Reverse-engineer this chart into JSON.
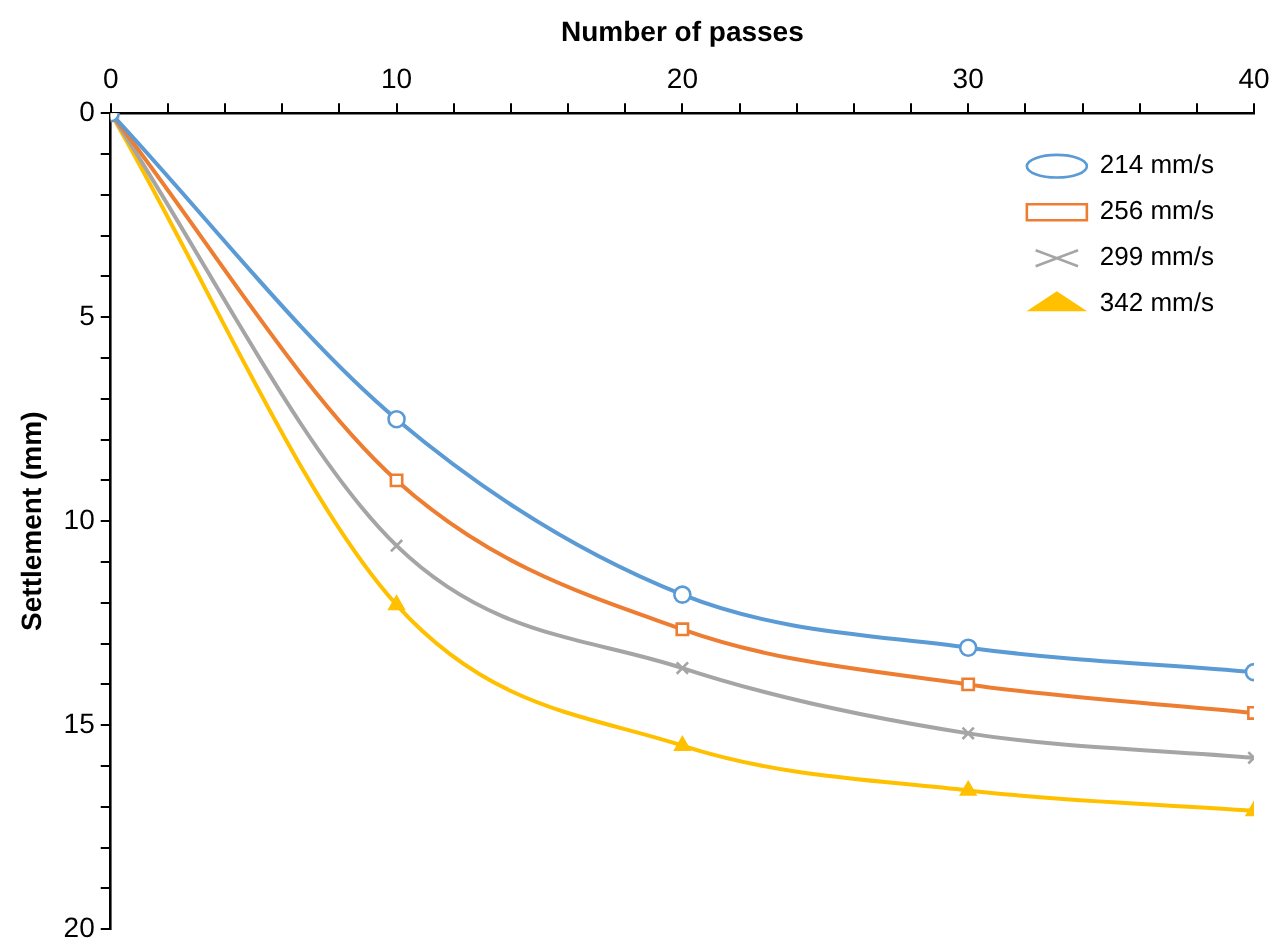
{
  "chart_data": {
    "type": "line",
    "xlabel": "Number of passes",
    "ylabel": "Settlement (mm)",
    "x": [
      0,
      10,
      20,
      30,
      40
    ],
    "xlim": [
      0,
      40
    ],
    "xticks": [
      0,
      {
        "value": 2,
        "label": null
      },
      {
        "value": 4,
        "label": null
      },
      {
        "value": 6,
        "label": null
      },
      {
        "value": 8,
        "label": null
      },
      10,
      {
        "value": 12,
        "label": null
      },
      {
        "value": 14,
        "label": null
      },
      {
        "value": 16,
        "label": null
      },
      {
        "value": 18,
        "label": null
      },
      20,
      {
        "value": 22,
        "label": null
      },
      {
        "value": 24,
        "label": null
      },
      {
        "value": 26,
        "label": null
      },
      {
        "value": 28,
        "label": null
      },
      30,
      {
        "value": 32,
        "label": null
      },
      {
        "value": 34,
        "label": null
      },
      {
        "value": 36,
        "label": null
      },
      {
        "value": 38,
        "label": null
      },
      40
    ],
    "ylim": [
      20,
      0
    ],
    "yticks": [
      0,
      {
        "value": 1,
        "label": null
      },
      {
        "value": 2,
        "label": null
      },
      {
        "value": 3,
        "label": null
      },
      {
        "value": 4,
        "label": null
      },
      5,
      {
        "value": 6,
        "label": null
      },
      {
        "value": 7,
        "label": null
      },
      {
        "value": 8,
        "label": null
      },
      {
        "value": 9,
        "label": null
      },
      10,
      {
        "value": 11,
        "label": null
      },
      {
        "value": 12,
        "label": null
      },
      {
        "value": 13,
        "label": null
      },
      {
        "value": 14,
        "label": null
      },
      15,
      {
        "value": 16,
        "label": null
      },
      {
        "value": 17,
        "label": null
      },
      {
        "value": 18,
        "label": null
      },
      {
        "value": 19,
        "label": null
      },
      20
    ],
    "grid": false,
    "legend": "top right",
    "series": [
      {
        "name": "214 mm/s",
        "color": "#5b9bd5",
        "marker": "circle",
        "values": [
          0,
          7.5,
          11.8,
          13.1,
          13.7
        ]
      },
      {
        "name": "256 mm/s",
        "color": "#ed7d31",
        "marker": "square",
        "values": [
          0,
          9.0,
          12.65,
          14.0,
          14.7
        ]
      },
      {
        "name": "299 mm/s",
        "color": "#a5a5a5",
        "marker": "cross",
        "values": [
          0,
          10.6,
          13.6,
          15.2,
          15.8
        ]
      },
      {
        "name": "342 mm/s",
        "color": "#ffc000",
        "marker": "triangle",
        "values": [
          0,
          12.05,
          15.5,
          16.6,
          17.1
        ]
      }
    ]
  }
}
